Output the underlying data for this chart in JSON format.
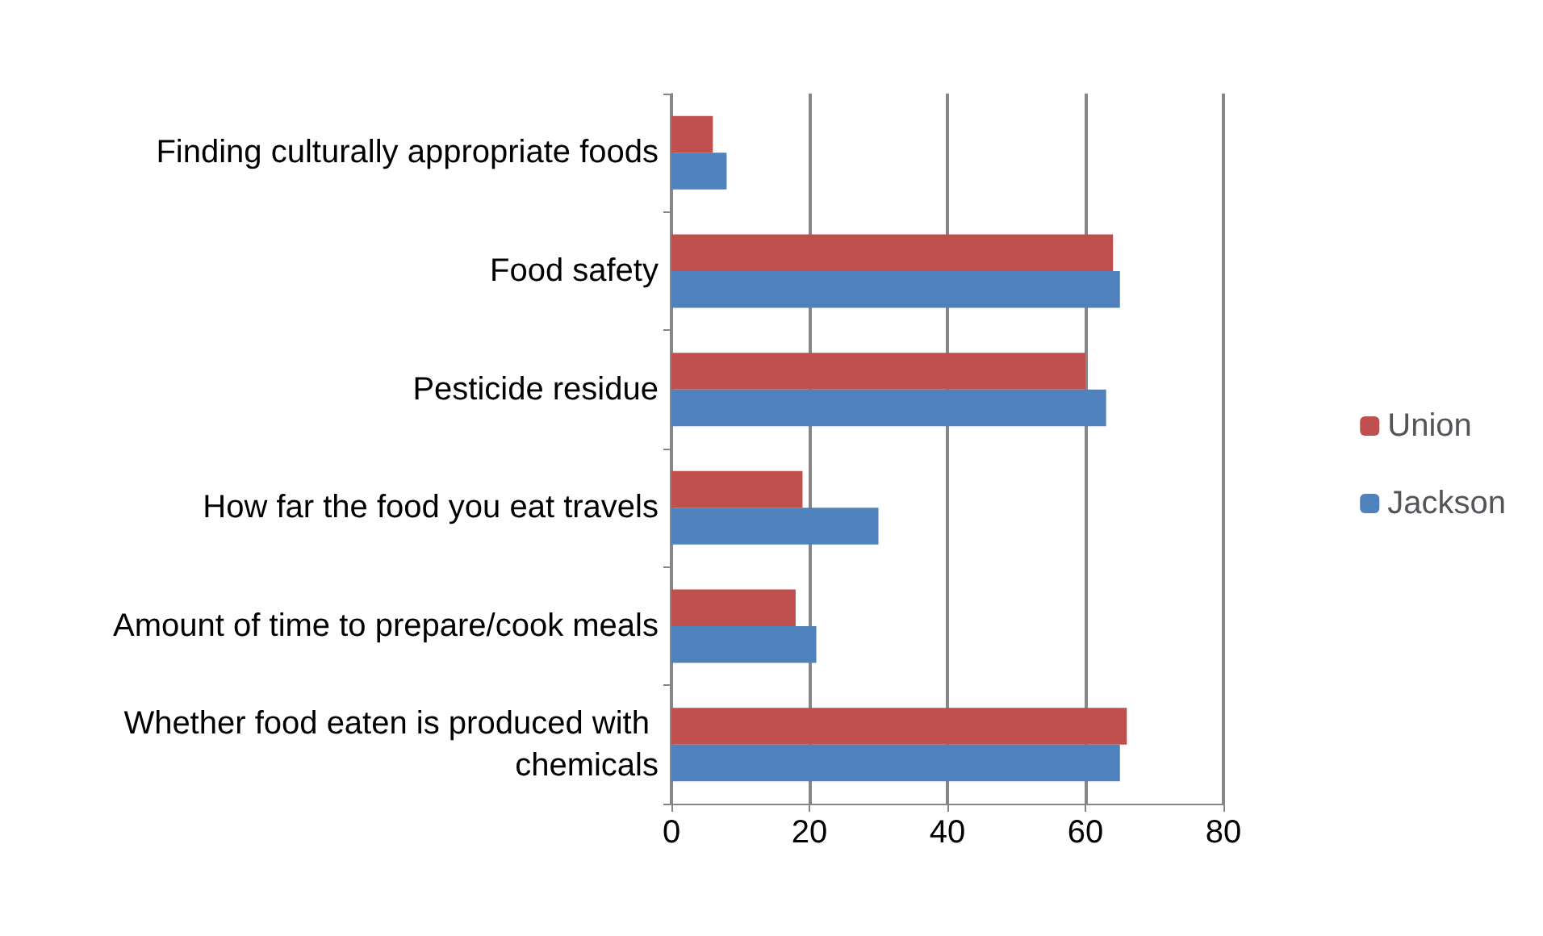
{
  "chart_data": {
    "type": "bar",
    "orientation": "horizontal",
    "categories": [
      "Finding culturally appropriate foods",
      "Food safety",
      "Pesticide residue",
      "How far the food you eat travels",
      "Amount of time to prepare/cook meals",
      "Whether food eaten is produced with chemicals"
    ],
    "series": [
      {
        "name": "Union",
        "color": "#c0504d",
        "values": [
          6,
          64,
          60,
          19,
          18,
          66
        ]
      },
      {
        "name": "Jackson",
        "color": "#4f81bd",
        "values": [
          8,
          65,
          63,
          30,
          21,
          65
        ]
      }
    ],
    "xlim": [
      0,
      80
    ],
    "xticks": [
      0,
      20,
      40,
      60,
      80
    ],
    "grid": "x",
    "legend": "right"
  }
}
